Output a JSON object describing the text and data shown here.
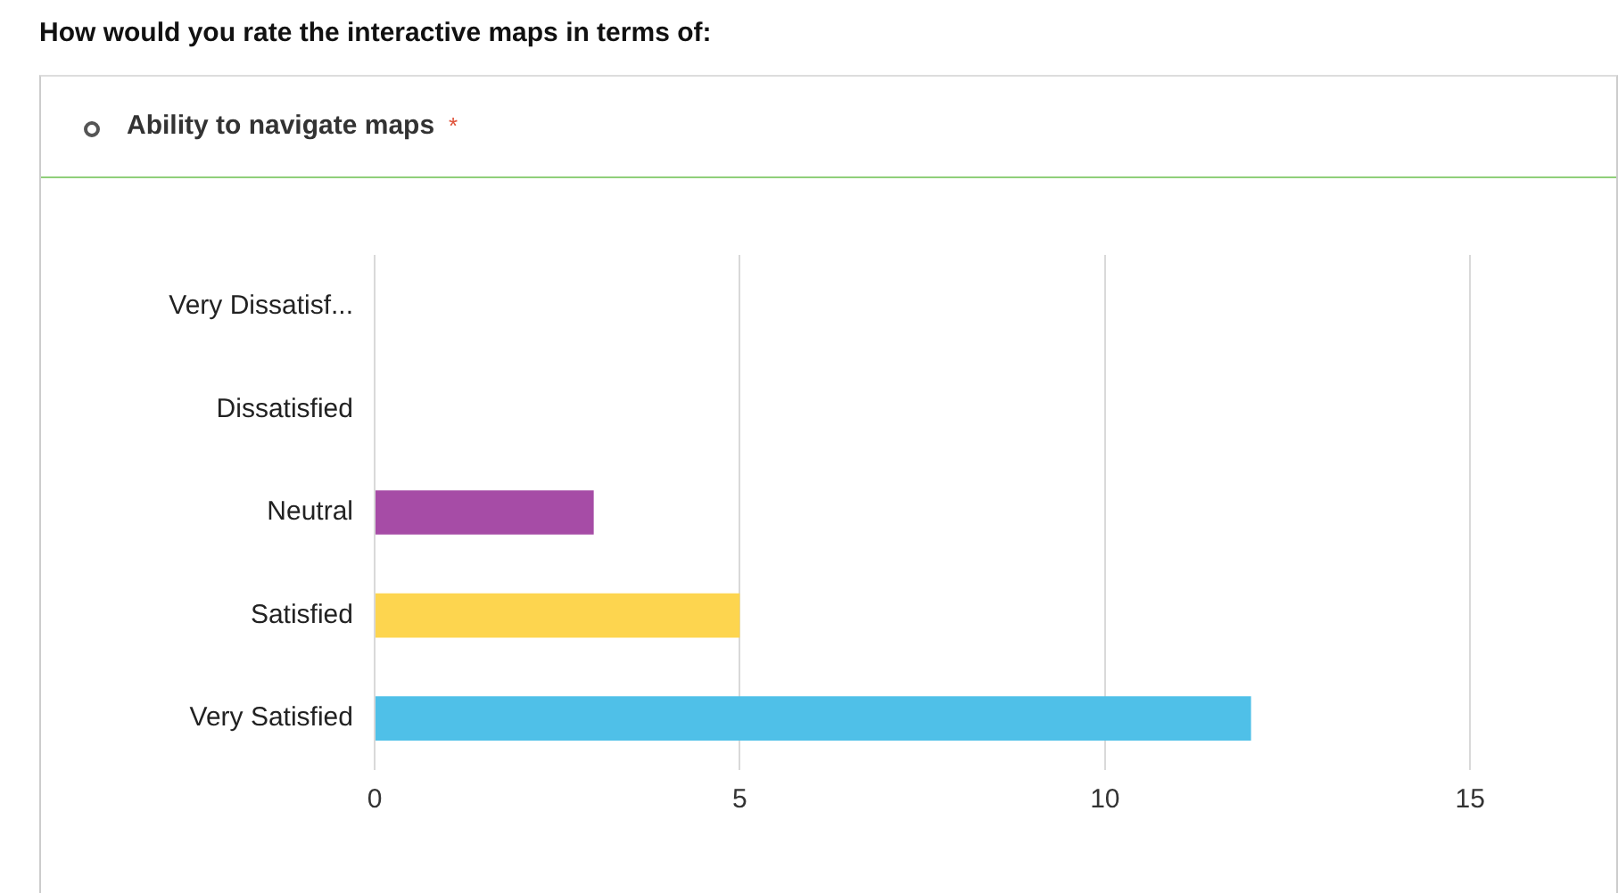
{
  "chart_data": {
    "type": "bar",
    "orientation": "horizontal",
    "title": "How would you rate the interactive maps in terms of:",
    "subtitle": "Ability to navigate maps",
    "annotations": [
      "*"
    ],
    "categories": [
      "Very Dissatisf...",
      "Dissatisfied",
      "Neutral",
      "Satisfied",
      "Very Satisfied"
    ],
    "values": [
      0,
      0,
      3,
      5,
      12
    ],
    "colors": [
      "#a64ca6",
      "#a64ca6",
      "#a64ca6",
      "#fdd54f",
      "#4fc0e8"
    ],
    "xlim": [
      0,
      17
    ],
    "xticks": [
      0,
      5,
      10,
      15
    ],
    "grid": "x",
    "legend": false
  }
}
